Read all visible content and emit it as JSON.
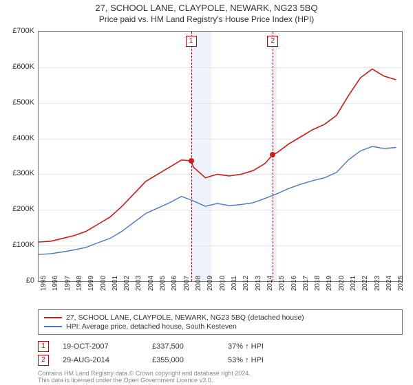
{
  "title": {
    "line1": "27, SCHOOL LANE, CLAYPOLE, NEWARK, NG23 5BQ",
    "line2": "Price paid vs. HM Land Registry's House Price Index (HPI)"
  },
  "chart": {
    "type": "line",
    "background_color": "#ffffff",
    "grid_color": "#e6e6e6",
    "axis_border_color": "#777777",
    "highlight_band_color": "#eef3fb",
    "x": {
      "min": 1995,
      "max": 2025.5,
      "ticks": [
        1995,
        1996,
        1997,
        1998,
        1999,
        2000,
        2001,
        2002,
        2003,
        2004,
        2005,
        2006,
        2007,
        2008,
        2009,
        2010,
        2011,
        2012,
        2013,
        2014,
        2015,
        2016,
        2017,
        2018,
        2019,
        2020,
        2021,
        2022,
        2023,
        2024,
        2025
      ],
      "label_fontsize": 10
    },
    "y": {
      "min": 0,
      "max": 700000,
      "ticks": [
        0,
        100000,
        200000,
        300000,
        400000,
        500000,
        600000,
        700000
      ],
      "tick_labels": [
        "£0",
        "£100K",
        "£200K",
        "£300K",
        "£400K",
        "£500K",
        "£600K",
        "£700K"
      ],
      "label_fontsize": 11
    },
    "highlight_bands": [
      {
        "from": 2007.8,
        "to": 2009.5
      },
      {
        "from": 2014.66,
        "to": 2015.0
      }
    ],
    "vlines": [
      {
        "x": 2007.8,
        "label": "1",
        "color": "#cc0000"
      },
      {
        "x": 2014.66,
        "label": "2",
        "color": "#cc0000"
      }
    ],
    "series": [
      {
        "name": "property",
        "label": "27, SCHOOL LANE, CLAYPOLE, NEWARK, NG23 5BQ (detached house)",
        "color": "#d11919",
        "line_width": 1.6,
        "points": [
          [
            1995,
            110000
          ],
          [
            1996,
            112000
          ],
          [
            1997,
            120000
          ],
          [
            1998,
            128000
          ],
          [
            1999,
            140000
          ],
          [
            2000,
            160000
          ],
          [
            2001,
            180000
          ],
          [
            2002,
            210000
          ],
          [
            2003,
            245000
          ],
          [
            2004,
            280000
          ],
          [
            2005,
            300000
          ],
          [
            2006,
            320000
          ],
          [
            2007,
            340000
          ],
          [
            2007.8,
            337500
          ],
          [
            2008,
            320000
          ],
          [
            2009,
            290000
          ],
          [
            2010,
            300000
          ],
          [
            2011,
            295000
          ],
          [
            2012,
            300000
          ],
          [
            2013,
            310000
          ],
          [
            2014,
            330000
          ],
          [
            2014.66,
            355000
          ],
          [
            2015,
            360000
          ],
          [
            2016,
            385000
          ],
          [
            2017,
            405000
          ],
          [
            2018,
            425000
          ],
          [
            2019,
            440000
          ],
          [
            2020,
            465000
          ],
          [
            2021,
            520000
          ],
          [
            2022,
            570000
          ],
          [
            2023,
            595000
          ],
          [
            2024,
            575000
          ],
          [
            2025,
            565000
          ]
        ],
        "markers": [
          {
            "x": 2007.8,
            "y": 337500,
            "color": "#d11919"
          },
          {
            "x": 2014.66,
            "y": 355000,
            "color": "#d11919"
          }
        ]
      },
      {
        "name": "hpi",
        "label": "HPI: Average price, detached house, South Kesteven",
        "color": "#4a76c7",
        "line_width": 1.4,
        "points": [
          [
            1995,
            75000
          ],
          [
            1996,
            77000
          ],
          [
            1997,
            82000
          ],
          [
            1998,
            88000
          ],
          [
            1999,
            95000
          ],
          [
            2000,
            108000
          ],
          [
            2001,
            120000
          ],
          [
            2002,
            140000
          ],
          [
            2003,
            165000
          ],
          [
            2004,
            190000
          ],
          [
            2005,
            205000
          ],
          [
            2006,
            220000
          ],
          [
            2007,
            238000
          ],
          [
            2008,
            225000
          ],
          [
            2009,
            210000
          ],
          [
            2010,
            218000
          ],
          [
            2011,
            212000
          ],
          [
            2012,
            215000
          ],
          [
            2013,
            220000
          ],
          [
            2014,
            232000
          ],
          [
            2015,
            245000
          ],
          [
            2016,
            260000
          ],
          [
            2017,
            272000
          ],
          [
            2018,
            282000
          ],
          [
            2019,
            290000
          ],
          [
            2020,
            305000
          ],
          [
            2021,
            340000
          ],
          [
            2022,
            365000
          ],
          [
            2023,
            378000
          ],
          [
            2024,
            372000
          ],
          [
            2025,
            375000
          ]
        ]
      }
    ]
  },
  "legend": {
    "border_color": "#777777",
    "fontsize": 10.5
  },
  "sales": [
    {
      "marker": "1",
      "date": "19-OCT-2007",
      "price": "£337,500",
      "pct": "37% ↑ HPI"
    },
    {
      "marker": "2",
      "date": "29-AUG-2014",
      "price": "£355,000",
      "pct": "53% ↑ HPI"
    }
  ],
  "footer": {
    "line1": "Contains HM Land Registry data © Crown copyright and database right 2024.",
    "line2": "This data is licensed under the Open Government Licence v3.0.",
    "color": "#888888",
    "fontsize": 9
  }
}
